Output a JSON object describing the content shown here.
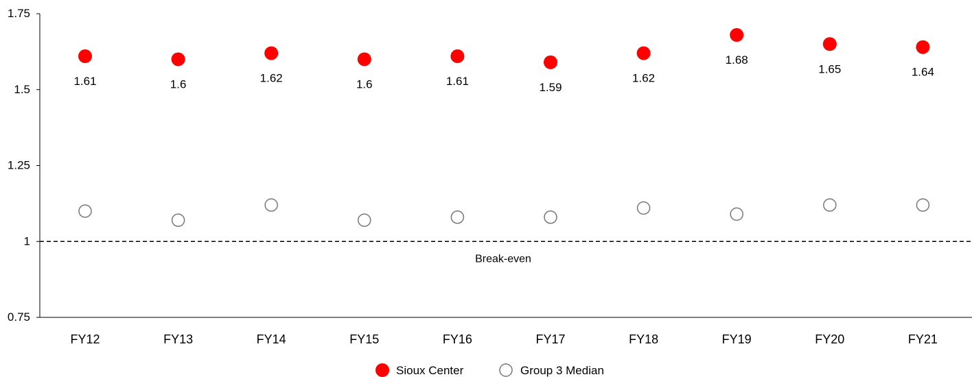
{
  "chart_data": {
    "type": "scatter",
    "categories": [
      "FY12",
      "FY13",
      "FY14",
      "FY15",
      "FY16",
      "FY17",
      "FY18",
      "FY19",
      "FY20",
      "FY21"
    ],
    "series": [
      {
        "name": "Sioux Center",
        "values": [
          1.61,
          1.6,
          1.62,
          1.6,
          1.61,
          1.59,
          1.62,
          1.68,
          1.65,
          1.64
        ],
        "value_labels": [
          "1.61",
          "1.6",
          "1.62",
          "1.6",
          "1.61",
          "1.59",
          "1.62",
          "1.68",
          "1.65",
          "1.64"
        ],
        "color": "#ff0000",
        "marker": "filled-circle"
      },
      {
        "name": "Group 3 Median",
        "values": [
          1.1,
          1.07,
          1.12,
          1.07,
          1.08,
          1.08,
          1.11,
          1.09,
          1.12,
          1.12
        ],
        "color": "#777777",
        "marker": "hollow-circle"
      }
    ],
    "ylim": [
      0.75,
      1.75
    ],
    "yticks": [
      0.75,
      1,
      1.25,
      1.5,
      1.75
    ],
    "ytick_labels": [
      "0.75",
      "1",
      "1.25",
      "1.5",
      "1.75"
    ],
    "reference_line": {
      "value": 1,
      "label": "Break-even",
      "style": "dashed"
    },
    "legend_position": "bottom-center",
    "grid": false
  }
}
